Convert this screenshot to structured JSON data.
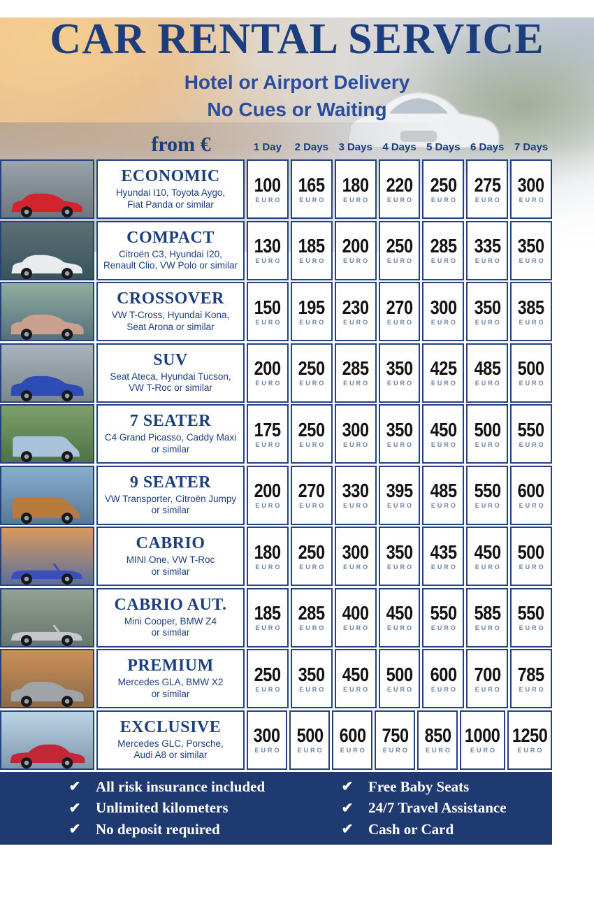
{
  "header": {
    "title": "CAR RENTAL SERVICE",
    "subtitle_line1": "Hotel or Airport Delivery",
    "subtitle_line2": "No Cues or Waiting",
    "from_label": "from €",
    "day_columns": [
      "1 Day",
      "2 Days",
      "3 Days",
      "4 Days",
      "5 Days",
      "6 Days",
      "7 Days"
    ]
  },
  "table": {
    "currency_label": "EURO",
    "rows": [
      {
        "category": "ECONOMIC",
        "description": "Hyundai I10, Toyota Aygo,\nFiat Panda or similar",
        "prices": [
          "100",
          "165",
          "180",
          "220",
          "250",
          "275",
          "300"
        ],
        "photo": {
          "alt": "red hatchback on city street",
          "type": "hatch",
          "car_color": "#d2232e",
          "bg_top": "#9aa3ab",
          "bg_bottom": "#6d767f"
        }
      },
      {
        "category": "COMPACT",
        "description": "Citroën C3, Hyundai I20,\nRenault Clio, VW Polo or similar",
        "prices": [
          "130",
          "185",
          "200",
          "250",
          "285",
          "335",
          "350"
        ],
        "photo": {
          "alt": "white hatchback in dark city",
          "type": "hatch",
          "car_color": "#e9ebed",
          "bg_top": "#5d7076",
          "bg_bottom": "#39545c"
        }
      },
      {
        "category": "CROSSOVER",
        "description": "VW T-Cross, Hyundai Kona,\nSeat Arona or similar",
        "prices": [
          "150",
          "195",
          "230",
          "270",
          "300",
          "350",
          "385"
        ],
        "photo": {
          "alt": "rose-gold crossover, green buildings",
          "type": "suv",
          "car_color": "#c9a08d",
          "bg_top": "#8fae9f",
          "bg_bottom": "#55707d"
        }
      },
      {
        "category": "SUV",
        "description": "Seat Ateca, Hyundai Tucson,\nVW T-Roc or similar",
        "prices": [
          "200",
          "250",
          "285",
          "350",
          "425",
          "485",
          "500"
        ],
        "photo": {
          "alt": "blue SUV on gray road",
          "type": "suv",
          "car_color": "#2d4db5",
          "bg_top": "#aab3bc",
          "bg_bottom": "#7c868f"
        }
      },
      {
        "category": "7 SEATER",
        "description": "C4 Grand Picasso, Caddy Maxi\nor similar",
        "prices": [
          "175",
          "250",
          "300",
          "350",
          "450",
          "500",
          "550"
        ],
        "photo": {
          "alt": "light blue minivan, green hills",
          "type": "van",
          "car_color": "#a9c3dc",
          "bg_top": "#7da06b",
          "bg_bottom": "#4f7247"
        }
      },
      {
        "category": "9 SEATER",
        "description": "VW Transporter, Citroën Jumpy\nor similar",
        "prices": [
          "200",
          "270",
          "330",
          "395",
          "485",
          "550",
          "600"
        ],
        "photo": {
          "alt": "bronze van at the beach",
          "type": "van",
          "car_color": "#b87a3d",
          "bg_top": "#86aed0",
          "bg_bottom": "#5a7894"
        }
      },
      {
        "category": "CABRIO",
        "description": "MINI One, VW T-Roc\nor similar",
        "prices": [
          "180",
          "250",
          "300",
          "350",
          "435",
          "450",
          "500"
        ],
        "photo": {
          "alt": "blue mini convertible, city dusk",
          "type": "cabrio",
          "car_color": "#3a4fbe",
          "bg_top": "#d99a5d",
          "bg_bottom": "#5d6f9a"
        }
      },
      {
        "category": "CABRIO AUT.",
        "description": "Mini Cooper, BMW Z4\nor similar",
        "prices": [
          "185",
          "285",
          "400",
          "450",
          "550",
          "585",
          "550"
        ],
        "photo": {
          "alt": "silver roadster in mountains",
          "type": "cabrio",
          "car_color": "#c3c7cb",
          "bg_top": "#93a193",
          "bg_bottom": "#66766b"
        }
      },
      {
        "category": "PREMIUM",
        "description": "Mercedes GLA, BMW X2\nor similar",
        "prices": [
          "250",
          "350",
          "450",
          "500",
          "600",
          "700",
          "785"
        ],
        "photo": {
          "alt": "silver premium SUV, orange rocks",
          "type": "suv",
          "car_color": "#9fa4a9",
          "bg_top": "#cc9059",
          "bg_bottom": "#8a6a48"
        }
      },
      {
        "category": "EXCLUSIVE",
        "description": "Mercedes GLC, Porsche,\nAudi A8 or similar",
        "prices": [
          "300",
          "500",
          "600",
          "750",
          "850",
          "1000",
          "1250"
        ],
        "photo": {
          "alt": "red luxury sedan, blue sky",
          "type": "sedan",
          "car_color": "#c22737",
          "bg_top": "#bcd3e6",
          "bg_bottom": "#7f98ad"
        }
      }
    ]
  },
  "footer": {
    "check_icon": "✔",
    "items_left": [
      "All risk insurance included",
      "Unlimited kilometers",
      "No deposit required"
    ],
    "items_right": [
      "Free Baby Seats",
      "24/7 Travel Assistance",
      "Cash or Card"
    ]
  },
  "colors": {
    "navy": "#1c3e7e",
    "subtitle_blue": "#2b4da0",
    "border_navy": "#24427e",
    "price_black": "#121212",
    "euro_blue": "#6d82a3",
    "footer_bg": "#1f3a71",
    "footer_text": "#ffffff"
  }
}
